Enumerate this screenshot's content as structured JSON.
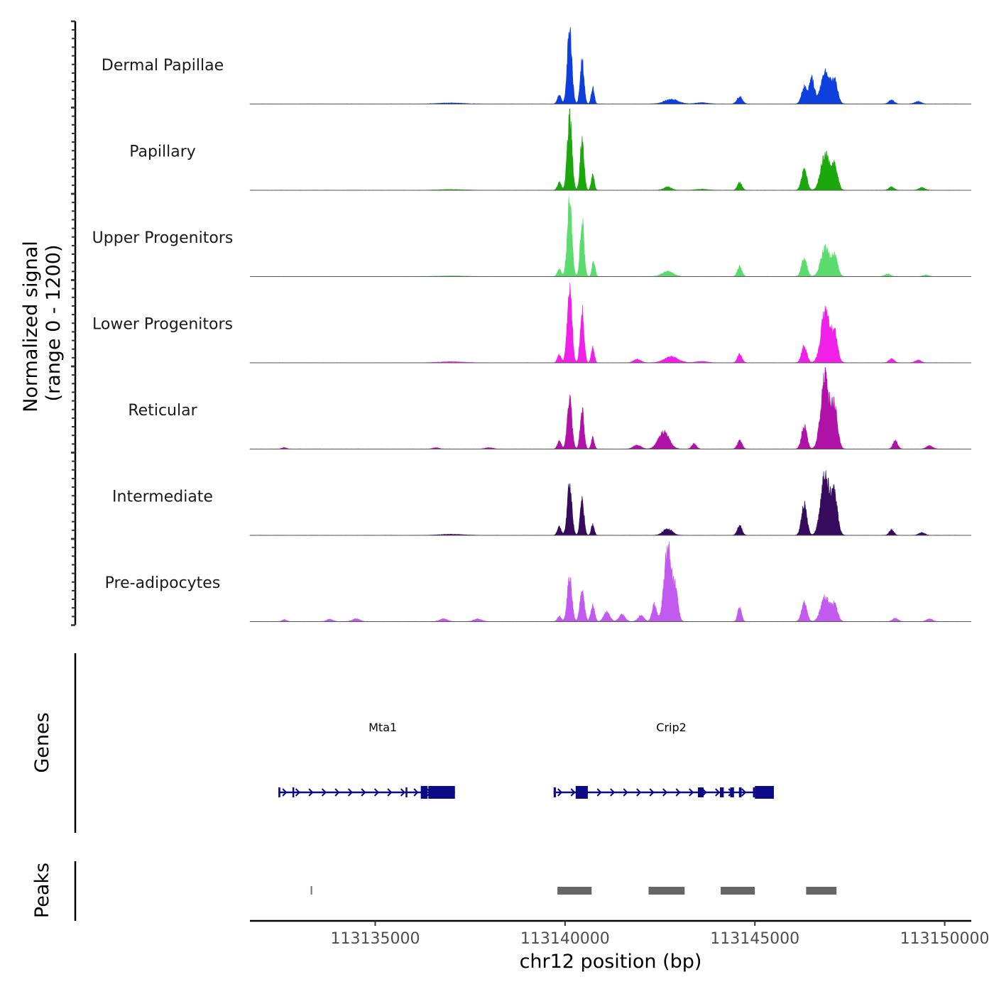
{
  "chart_data": {
    "type": "area",
    "title": "",
    "chromosome": "chr12",
    "xlabel": "chr12 position (bp)",
    "ylabel": "Normalized signal",
    "ylabel_range": "(range 0 - 1200)",
    "xlim": [
      113131700,
      113150700
    ],
    "ylim": [
      0,
      1200
    ],
    "x_ticks": [
      113135000,
      113140000,
      113145000,
      113150000
    ],
    "x_tick_labels": [
      "113135000",
      "113140000",
      "113145000",
      "113150000"
    ],
    "signal_start": 113131700,
    "signal_end": 113150400,
    "tracks": [
      {
        "name": "Dermal Papillae",
        "color": "#0d3fdc",
        "peaks": [
          [
            113140120,
            1150,
            60
          ],
          [
            113140450,
            650,
            50
          ],
          [
            113140730,
            250,
            40
          ],
          [
            113139850,
            130,
            50
          ],
          [
            113142800,
            70,
            180
          ],
          [
            113144600,
            110,
            70
          ],
          [
            113146300,
            250,
            70
          ],
          [
            113146500,
            380,
            70
          ],
          [
            113146850,
            500,
            110
          ],
          [
            113147100,
            350,
            80
          ],
          [
            113148600,
            60,
            70
          ],
          [
            113149300,
            40,
            80
          ],
          [
            113137000,
            15,
            300
          ],
          [
            113143600,
            20,
            150
          ]
        ]
      },
      {
        "name": "Papillary",
        "color": "#1ba80d",
        "peaks": [
          [
            113140120,
            1150,
            60
          ],
          [
            113140450,
            820,
            50
          ],
          [
            113140730,
            250,
            40
          ],
          [
            113139850,
            120,
            50
          ],
          [
            113142700,
            50,
            100
          ],
          [
            113144600,
            120,
            60
          ],
          [
            113146300,
            320,
            70
          ],
          [
            113146850,
            550,
            110
          ],
          [
            113147100,
            380,
            80
          ],
          [
            113148600,
            50,
            70
          ],
          [
            113149400,
            40,
            80
          ],
          [
            113137000,
            10,
            300
          ],
          [
            113143600,
            15,
            150
          ]
        ]
      },
      {
        "name": "Upper Progenitors",
        "color": "#5cdc6f",
        "peaks": [
          [
            113140120,
            1150,
            60
          ],
          [
            113140450,
            850,
            50
          ],
          [
            113140750,
            230,
            40
          ],
          [
            113139850,
            110,
            50
          ],
          [
            113142700,
            80,
            140
          ],
          [
            113144600,
            150,
            60
          ],
          [
            113146300,
            280,
            70
          ],
          [
            113146850,
            440,
            110
          ],
          [
            113147100,
            300,
            80
          ],
          [
            113148500,
            40,
            70
          ],
          [
            113149500,
            20,
            80
          ],
          [
            113137000,
            10,
            300
          ]
        ]
      },
      {
        "name": "Lower Progenitors",
        "color": "#f020e8",
        "peaks": [
          [
            113140120,
            1150,
            60
          ],
          [
            113140450,
            800,
            50
          ],
          [
            113140730,
            250,
            40
          ],
          [
            113139850,
            120,
            50
          ],
          [
            113142800,
            90,
            180
          ],
          [
            113141900,
            50,
            100
          ],
          [
            113144600,
            130,
            60
          ],
          [
            113146300,
            250,
            70
          ],
          [
            113146850,
            780,
            110
          ],
          [
            113147100,
            450,
            80
          ],
          [
            113148600,
            60,
            70
          ],
          [
            113149300,
            40,
            80
          ],
          [
            113137000,
            15,
            300
          ],
          [
            113143600,
            20,
            150
          ]
        ]
      },
      {
        "name": "Reticular",
        "color": "#b012a8",
        "peaks": [
          [
            113140120,
            760,
            60
          ],
          [
            113140450,
            600,
            50
          ],
          [
            113140730,
            180,
            40
          ],
          [
            113139850,
            120,
            50
          ],
          [
            113142600,
            260,
            140
          ],
          [
            113141900,
            60,
            100
          ],
          [
            113143400,
            80,
            60
          ],
          [
            113144600,
            130,
            60
          ],
          [
            113146300,
            350,
            70
          ],
          [
            113146850,
            1100,
            110
          ],
          [
            113147100,
            600,
            80
          ],
          [
            113148700,
            130,
            60
          ],
          [
            113149600,
            50,
            80
          ],
          [
            113132600,
            20,
            60
          ],
          [
            113136600,
            20,
            80
          ],
          [
            113138000,
            20,
            100
          ]
        ]
      },
      {
        "name": "Intermediate",
        "color": "#360a5c",
        "peaks": [
          [
            113140120,
            780,
            60
          ],
          [
            113140450,
            550,
            50
          ],
          [
            113140730,
            170,
            40
          ],
          [
            113139850,
            130,
            50
          ],
          [
            113142700,
            100,
            120
          ],
          [
            113144600,
            150,
            60
          ],
          [
            113146300,
            480,
            70
          ],
          [
            113146850,
            950,
            110
          ],
          [
            113147100,
            600,
            80
          ],
          [
            113148600,
            90,
            60
          ],
          [
            113149400,
            40,
            80
          ],
          [
            113137000,
            15,
            300
          ]
        ]
      },
      {
        "name": "Pre-adipocytes",
        "color": "#c25aef",
        "peaks": [
          [
            113140120,
            700,
            60
          ],
          [
            113140450,
            450,
            60
          ],
          [
            113140730,
            250,
            50
          ],
          [
            113141100,
            150,
            80
          ],
          [
            113141500,
            110,
            80
          ],
          [
            113142000,
            90,
            80
          ],
          [
            113142350,
            270,
            60
          ],
          [
            113142700,
            1150,
            90
          ],
          [
            113142900,
            500,
            70
          ],
          [
            113139850,
            80,
            50
          ],
          [
            113144600,
            220,
            50
          ],
          [
            113146300,
            300,
            70
          ],
          [
            113146850,
            380,
            110
          ],
          [
            113147100,
            250,
            80
          ],
          [
            113148700,
            50,
            70
          ],
          [
            113149600,
            40,
            80
          ],
          [
            113132600,
            30,
            60
          ],
          [
            113133800,
            35,
            80
          ],
          [
            113134500,
            40,
            100
          ],
          [
            113136800,
            40,
            100
          ],
          [
            113137700,
            40,
            100
          ]
        ]
      }
    ],
    "genes": [
      {
        "name": "Mta1",
        "strand": "+",
        "start": 113132450,
        "end": 113137100,
        "exons": [
          [
            113132450,
            113132500
          ],
          [
            113132820,
            113132860
          ],
          [
            113135800,
            113135840
          ],
          [
            113136200,
            113136380
          ],
          [
            113136400,
            113137100
          ]
        ],
        "label_pos": 113135200
      },
      {
        "name": "Crip2",
        "strand": "+",
        "start": 113139700,
        "end": 113145500,
        "exons": [
          [
            113139700,
            113139760
          ],
          [
            113140280,
            113140600
          ],
          [
            113143500,
            113143650
          ],
          [
            113144080,
            113144180
          ],
          [
            113144350,
            113144450
          ],
          [
            113144580,
            113144650
          ],
          [
            113144950,
            113145000
          ],
          [
            113145000,
            113145500
          ]
        ],
        "label_pos": 113142800
      }
    ],
    "peaks_track": [
      [
        113133300,
        113133340
      ],
      [
        113139800,
        113140700
      ],
      [
        113142200,
        113143150
      ],
      [
        113144100,
        113145000
      ],
      [
        113146350,
        113147150
      ]
    ],
    "section_labels": {
      "genes": "Genes",
      "peaks": "Peaks"
    }
  }
}
